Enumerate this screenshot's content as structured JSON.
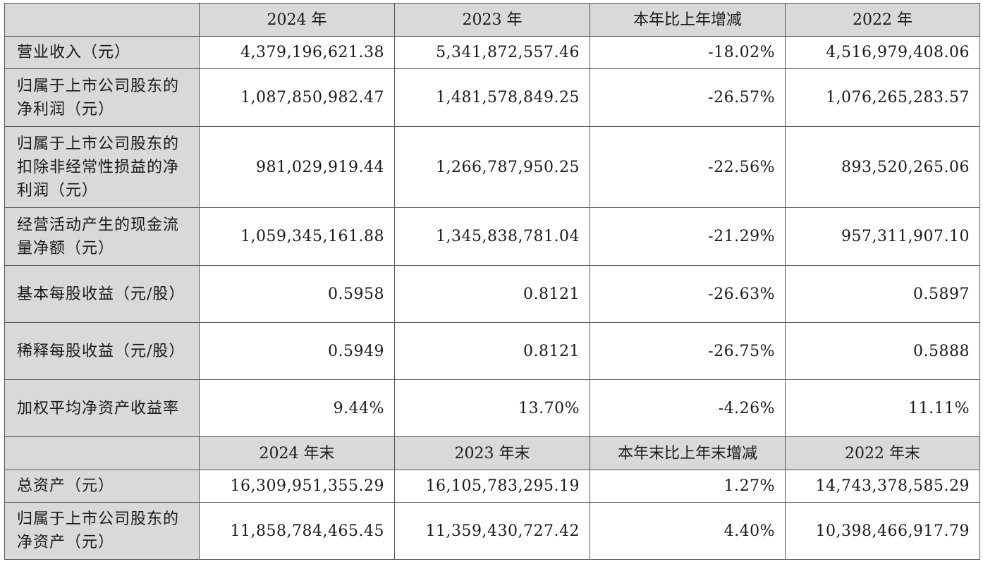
{
  "header1": [
    "",
    "2024 年",
    "2023 年",
    "本年比上年增减",
    "2022 年"
  ],
  "rows1": [
    {
      "label": "营业收入（元）",
      "v2024": "4,379,196,621.38",
      "v2023": "5,341,872,557.46",
      "change": "-18.02%",
      "v2022": "4,516,979,408.06"
    },
    {
      "label": "归属于上市公司股东的净利润（元）",
      "v2024": "1,087,850,982.47",
      "v2023": "1,481,578,849.25",
      "change": "-26.57%",
      "v2022": "1,076,265,283.57"
    },
    {
      "label": "归属于上市公司股东的扣除非经常性损益的净利润（元）",
      "v2024": "981,029,919.44",
      "v2023": "1,266,787,950.25",
      "change": "-22.56%",
      "v2022": "893,520,265.06"
    },
    {
      "label": "经营活动产生的现金流量净额（元）",
      "v2024": "1,059,345,161.88",
      "v2023": "1,345,838,781.04",
      "change": "-21.29%",
      "v2022": "957,311,907.10"
    },
    {
      "label": "基本每股收益（元/股）",
      "v2024": "0.5958",
      "v2023": "0.8121",
      "change": "-26.63%",
      "v2022": "0.5897"
    },
    {
      "label": "稀释每股收益（元/股）",
      "v2024": "0.5949",
      "v2023": "0.8121",
      "change": "-26.75%",
      "v2022": "0.5888"
    },
    {
      "label": "加权平均净资产收益率",
      "v2024": "9.44%",
      "v2023": "13.70%",
      "change": "-4.26%",
      "v2022": "11.11%"
    }
  ],
  "header2": [
    "",
    "2024 年末",
    "2023 年末",
    "本年末比上年末增减",
    "2022 年末"
  ],
  "rows2": [
    {
      "label": "总资产（元）",
      "v2024": "16,309,951,355.29",
      "v2023": "16,105,783,295.19",
      "change": "1.27%",
      "v2022": "14,743,378,585.29"
    },
    {
      "label": "归属于上市公司股东的净资产（元）",
      "v2024": "11,858,784,465.45",
      "v2023": "11,359,430,727.42",
      "change": "4.40%",
      "v2022": "10,398,466,917.79"
    }
  ]
}
